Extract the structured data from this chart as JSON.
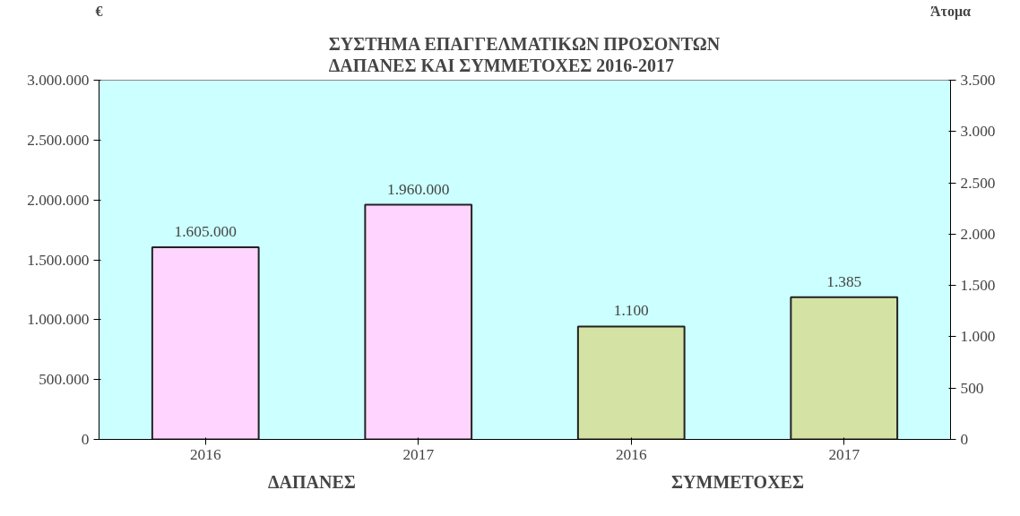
{
  "chart_data": {
    "type": "bar",
    "title": "ΣΥΣΤΗΜΑ ΕΠΑΓΓΕΛΜΑΤΙΚΩΝ ΠΡΟΣΟΝΤΩΝ\nΔΑΠΑΝΕΣ ΚΑΙ ΣΥΜΜΕΤΟΧΕΣ 2016-2017",
    "ylabel": "€",
    "y2label": "Άτομα",
    "categories": [
      "2016",
      "2017",
      "2016",
      "2017"
    ],
    "annotations": [
      "ΔΑΠΑΝΕΣ",
      "ΣΥΜΜΕΤΟΧΕΣ"
    ],
    "series": [
      {
        "color": "#ffd5ff",
        "values": [
          1605000,
          1960000,
          null,
          null
        ],
        "value_labels": [
          "1.605.000",
          "1.960.000",
          null,
          null
        ]
      },
      {
        "color": "#d4e3a3",
        "axis": "y2",
        "values": [
          null,
          null,
          1100,
          1385
        ],
        "value_labels": [
          null,
          null,
          "1.100",
          "1.385"
        ]
      }
    ],
    "ylim": [
      0,
      3000000
    ],
    "yticks": [
      {
        "value": 0,
        "label": "0"
      },
      {
        "value": 500000,
        "label": "500.000"
      },
      {
        "value": 1000000,
        "label": "1.000.000"
      },
      {
        "value": 1500000,
        "label": "1.500.000"
      },
      {
        "value": 2000000,
        "label": "2.000.000"
      },
      {
        "value": 2500000,
        "label": "2.500.000"
      },
      {
        "value": 3000000,
        "label": "3.000.000"
      }
    ],
    "y2lim": [
      0,
      3500
    ],
    "y2ticks": [
      0,
      500,
      {
        "value": 1000,
        "label": "1.000"
      },
      {
        "value": 1500,
        "label": "1.500"
      },
      {
        "value": 2000,
        "label": "2.000"
      },
      {
        "value": 2500,
        "label": "2.500"
      },
      {
        "value": 3000,
        "label": "3.000"
      },
      {
        "value": 3500,
        "label": "3.500"
      }
    ],
    "grid": false,
    "legend": false
  }
}
